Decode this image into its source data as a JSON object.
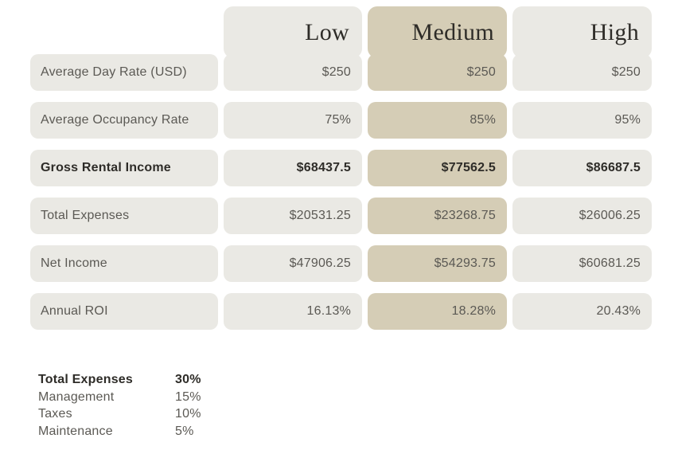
{
  "colors": {
    "background": "#ffffff",
    "light": "#eae9e4",
    "beige": "#d5cdb6",
    "text": "#5b5954",
    "text_dark": "#2e2c28"
  },
  "table": {
    "columns": [
      "Low",
      "Medium",
      "High"
    ],
    "highlighted_column": "Medium",
    "rows": [
      {
        "label": "Average Day Rate (USD)",
        "values": [
          "$250",
          "$250",
          "$250"
        ],
        "bold": false
      },
      {
        "label": "Average Occupancy Rate",
        "values": [
          "75%",
          "85%",
          "95%"
        ],
        "bold": false
      },
      {
        "label": "Gross Rental Income",
        "values": [
          "$68437.5",
          "$77562.5",
          "$86687.5"
        ],
        "bold": true
      },
      {
        "label": "Total Expenses",
        "values": [
          "$20531.25",
          "$23268.75",
          "$26006.25"
        ],
        "bold": false
      },
      {
        "label": "Net Income",
        "values": [
          "$47906.25",
          "$54293.75",
          "$60681.25"
        ],
        "bold": false
      },
      {
        "label": "Annual ROI",
        "values": [
          "16.13%",
          "18.28%",
          "20.43%"
        ],
        "bold": false
      }
    ]
  },
  "legend": {
    "title": {
      "label": "Total Expenses",
      "value": "30%"
    },
    "items": [
      {
        "label": "Management",
        "value": "15%"
      },
      {
        "label": "Taxes",
        "value": "10%"
      },
      {
        "label": "Maintenance",
        "value": "5%"
      }
    ]
  },
  "chart_data": {
    "type": "table",
    "title": "",
    "scenarios": [
      "Low",
      "Medium",
      "High"
    ],
    "highlighted_scenario": "Medium",
    "metrics": [
      "Average Day Rate (USD)",
      "Average Occupancy Rate",
      "Gross Rental Income",
      "Total Expenses",
      "Net Income",
      "Annual ROI"
    ],
    "values": {
      "average_day_rate_usd": [
        250,
        250,
        250
      ],
      "average_occupancy_rate_pct": [
        75,
        85,
        95
      ],
      "gross_rental_income_usd": [
        68437.5,
        77562.5,
        86687.5
      ],
      "total_expenses_usd": [
        20531.25,
        23268.75,
        26006.25
      ],
      "net_income_usd": [
        47906.25,
        54293.75,
        60681.25
      ],
      "annual_roi_pct": [
        16.13,
        18.28,
        20.43
      ]
    },
    "expense_breakdown_pct": {
      "total": 30,
      "management": 15,
      "taxes": 10,
      "maintenance": 5
    }
  }
}
